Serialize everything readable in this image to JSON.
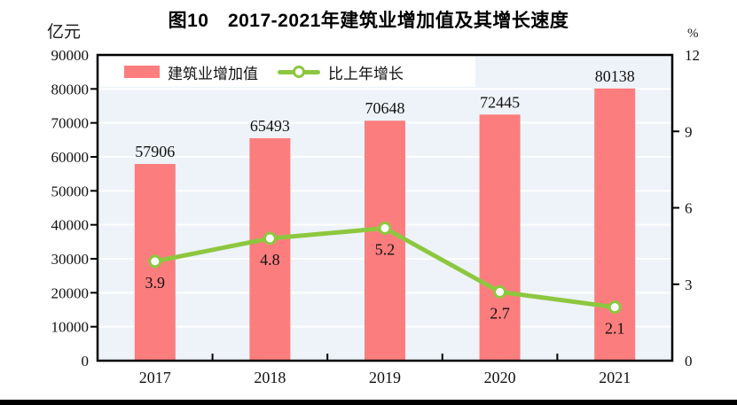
{
  "title": "图10　2017-2021年建筑业增加值及其增长速度",
  "left_axis": {
    "unit": "亿元",
    "min": 0,
    "max": 90000,
    "step": 10000,
    "tick_labels": [
      "0",
      "10000",
      "20000",
      "30000",
      "40000",
      "50000",
      "60000",
      "70000",
      "80000",
      "90000"
    ]
  },
  "right_axis": {
    "unit": "%",
    "min": 0,
    "max": 12,
    "step": 3,
    "tick_labels": [
      "0",
      "3",
      "6",
      "9",
      "12"
    ]
  },
  "legend": {
    "items": [
      {
        "label": "建筑业增加值",
        "swatch": "bar"
      },
      {
        "label": "比上年增长",
        "swatch": "line-marker"
      }
    ]
  },
  "chart_data": {
    "type": "bar+line combo",
    "title": "图10　2017-2021年建筑业增加值及其增长速度",
    "categories": [
      "2017",
      "2018",
      "2019",
      "2020",
      "2021"
    ],
    "series": [
      {
        "name": "建筑业增加值",
        "type": "bar",
        "axis": "left",
        "unit": "亿元",
        "values": [
          57906,
          65493,
          70648,
          72445,
          80138
        ],
        "labels": [
          "57906",
          "65493",
          "70648",
          "72445",
          "80138"
        ]
      },
      {
        "name": "比上年增长",
        "type": "line",
        "axis": "right",
        "unit": "%",
        "values": [
          3.9,
          4.8,
          5.2,
          2.7,
          2.1
        ],
        "labels": [
          "3.9",
          "4.8",
          "5.2",
          "2.7",
          "2.1"
        ]
      }
    ],
    "left_ylim": [
      0,
      90000
    ],
    "right_ylim": [
      0,
      12
    ],
    "grid": true,
    "legend_position": "top-left-inside"
  },
  "colors": {
    "bar": "#FC7D7D",
    "line": "#8DC73F",
    "marker_fill": "#FFFFFF",
    "plot_bg": "#EDF3F8",
    "grid": "#FFFFFF",
    "axis": "#000000",
    "text": "#111111",
    "bottom_rule": "#000000"
  }
}
